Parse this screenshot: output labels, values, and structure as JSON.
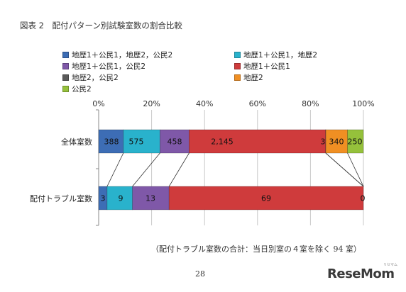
{
  "title": "図表 2　配付パターン別試験室数の割合比較",
  "legend": [
    {
      "label": "地歴1＋公民1，地歴2，公民2",
      "color": "#3d6db5"
    },
    {
      "label": "地歴1＋公民1，地歴2",
      "color": "#29b2cc"
    },
    {
      "label": "地歴1＋公民1，公民2",
      "color": "#7f58a8"
    },
    {
      "label": "地歴1＋公民1",
      "color": "#cf3b3c"
    },
    {
      "label": "地歴2，公民2",
      "color": "#5a5a5a"
    },
    {
      "label": "地歴2",
      "color": "#f08f23"
    },
    {
      "label": "公民2",
      "color": "#95c13b"
    }
  ],
  "chart_data": {
    "type": "bar",
    "orientation": "horizontal",
    "stacked": "percent",
    "categories": [
      "全体室数",
      "配付トラブル室数"
    ],
    "x_ticks": [
      "0%",
      "20%",
      "40%",
      "60%",
      "80%",
      "100%"
    ],
    "xlim": [
      0,
      100
    ],
    "grid": true,
    "legend_position": "top",
    "series": [
      {
        "name": "地歴1＋公民1，地歴2，公民2",
        "color": "#3d6db5",
        "values": [
          388,
          3
        ]
      },
      {
        "name": "地歴1＋公民1，地歴2",
        "color": "#29b2cc",
        "values": [
          575,
          9
        ]
      },
      {
        "name": "地歴1＋公民1，公民2",
        "color": "#7f58a8",
        "values": [
          458,
          13
        ]
      },
      {
        "name": "地歴1＋公民1",
        "color": "#cf3b3c",
        "values": [
          2145,
          69
        ]
      },
      {
        "name": "地歴2，公民2",
        "color": "#5a5a5a",
        "values": [
          3,
          0
        ]
      },
      {
        "name": "地歴2",
        "color": "#f08f23",
        "values": [
          340,
          0
        ]
      },
      {
        "name": "公民2",
        "color": "#95c13b",
        "values": [
          250,
          0
        ]
      }
    ],
    "data_labels": [
      [
        "388",
        "575",
        "458",
        "2,145",
        "3",
        "340",
        "250"
      ],
      [
        "3",
        "9",
        "13",
        "69",
        "0",
        "",
        ""
      ]
    ]
  },
  "footnote": "（配付トラブル室数の合計：当日別室の４室を除く 94 室）",
  "page_number": "28",
  "logo": {
    "text_main": "ReseMom",
    "text_sub": "リセマム"
  }
}
